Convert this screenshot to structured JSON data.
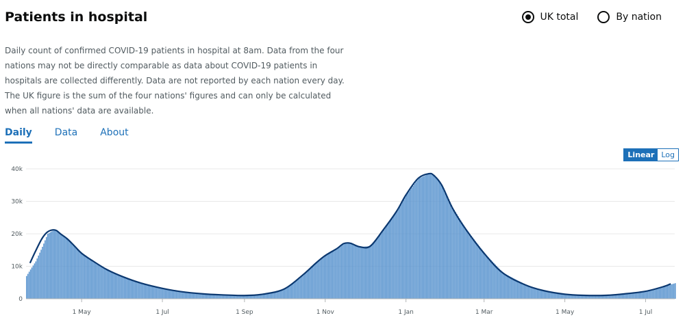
{
  "header": {
    "title": "Patients in hospital"
  },
  "view_options": [
    {
      "label": "UK total",
      "checked": true
    },
    {
      "label": "By nation",
      "checked": false
    }
  ],
  "description": "Daily count of confirmed COVID-19 patients in hospital at 8am. Data from the four nations may not be directly comparable as data about COVID-19 patients in hospitals are collected differently. Data are not reported by each nation every day. The UK figure is the sum of the four nations' figures and can only be calculated when all nations' data are available.",
  "tabs": [
    {
      "label": "Daily",
      "active": true
    },
    {
      "label": "Data",
      "active": false
    },
    {
      "label": "About",
      "active": false
    }
  ],
  "scale_toggle": {
    "linear_label": "Linear",
    "log_label": "Log",
    "selected": "Linear"
  },
  "colors": {
    "bars": "#5b95cf",
    "line": "#0b3870",
    "link": "#1d70b8"
  },
  "chart_data": {
    "type": "bar",
    "title": "",
    "xlabel": "",
    "ylabel": "",
    "ylim": [
      0,
      40000
    ],
    "y_ticks": [
      0,
      10000,
      20000,
      30000,
      40000
    ],
    "y_tick_labels": [
      "0",
      "10k",
      "20k",
      "30k",
      "40k"
    ],
    "x_ticks": [
      "2020-05-01",
      "2020-07-01",
      "2020-09-01",
      "2020-11-01",
      "2021-01-01",
      "2021-03-01",
      "2021-05-01",
      "2021-07-01"
    ],
    "x_tick_labels": [
      "1 May",
      "1 Jul",
      "1 Sep",
      "1 Nov",
      "1 Jan",
      "1 Mar",
      "1 May",
      "1 Jul"
    ],
    "x_range": [
      "2020-03-20",
      "2021-07-23"
    ],
    "grid": true,
    "series": [
      {
        "kind": "bars",
        "dates": [
          "2020-03-20",
          "2020-03-23",
          "2020-03-27",
          "2020-04-01",
          "2020-04-05",
          "2020-04-09",
          "2020-04-12",
          "2020-04-15",
          "2020-04-20",
          "2020-04-25",
          "2020-05-01",
          "2020-05-10",
          "2020-05-20",
          "2020-06-01",
          "2020-06-15",
          "2020-07-01",
          "2020-07-15",
          "2020-08-01",
          "2020-08-15",
          "2020-09-01",
          "2020-09-15",
          "2020-10-01",
          "2020-10-15",
          "2020-10-25",
          "2020-11-01",
          "2020-11-10",
          "2020-11-15",
          "2020-11-20",
          "2020-11-27",
          "2020-12-05",
          "2020-12-15",
          "2020-12-25",
          "2021-01-01",
          "2021-01-10",
          "2021-01-18",
          "2021-01-22",
          "2021-01-28",
          "2021-02-05",
          "2021-02-15",
          "2021-03-01",
          "2021-03-15",
          "2021-04-01",
          "2021-04-15",
          "2021-05-01",
          "2021-05-15",
          "2021-06-01",
          "2021-06-15",
          "2021-07-01",
          "2021-07-15",
          "2021-07-23"
        ],
        "values": [
          7000,
          9000,
          11500,
          16000,
          20000,
          21000,
          21000,
          20000,
          18500,
          16500,
          14000,
          11500,
          9000,
          6800,
          4800,
          3200,
          2200,
          1500,
          1200,
          1000,
          1400,
          3000,
          7300,
          11000,
          13300,
          15500,
          17000,
          17100,
          16000,
          16200,
          21300,
          27000,
          32000,
          37000,
          38500,
          38000,
          35000,
          28000,
          21500,
          14000,
          8000,
          4300,
          2500,
          1400,
          1050,
          1050,
          1500,
          2300,
          3800,
          4800
        ]
      },
      {
        "kind": "line",
        "name": "",
        "dates": [
          "2020-03-23",
          "2020-03-27",
          "2020-04-01",
          "2020-04-05",
          "2020-04-09",
          "2020-04-12",
          "2020-04-15",
          "2020-04-20",
          "2020-04-25",
          "2020-05-01",
          "2020-05-10",
          "2020-05-20",
          "2020-06-01",
          "2020-06-15",
          "2020-07-01",
          "2020-07-15",
          "2020-08-01",
          "2020-08-15",
          "2020-09-01",
          "2020-09-15",
          "2020-10-01",
          "2020-10-15",
          "2020-10-25",
          "2020-11-01",
          "2020-11-10",
          "2020-11-15",
          "2020-11-20",
          "2020-11-27",
          "2020-12-05",
          "2020-12-15",
          "2020-12-25",
          "2021-01-01",
          "2021-01-10",
          "2021-01-18",
          "2021-01-22",
          "2021-01-28",
          "2021-02-05",
          "2021-02-15",
          "2021-03-01",
          "2021-03-15",
          "2021-04-01",
          "2021-04-15",
          "2021-05-01",
          "2021-05-15",
          "2021-06-01",
          "2021-06-15",
          "2021-07-01",
          "2021-07-15",
          "2021-07-20"
        ],
        "values": [
          11000,
          14500,
          18500,
          20500,
          21200,
          21000,
          20000,
          18500,
          16500,
          14000,
          11500,
          9000,
          6800,
          4800,
          3200,
          2200,
          1500,
          1200,
          1000,
          1400,
          3000,
          7300,
          11000,
          13300,
          15500,
          17000,
          17100,
          16000,
          16200,
          21300,
          27000,
          32000,
          37000,
          38500,
          38000,
          35000,
          28000,
          21500,
          14000,
          8000,
          4300,
          2500,
          1400,
          1050,
          1050,
          1500,
          2300,
          3800,
          4600
        ]
      }
    ]
  }
}
